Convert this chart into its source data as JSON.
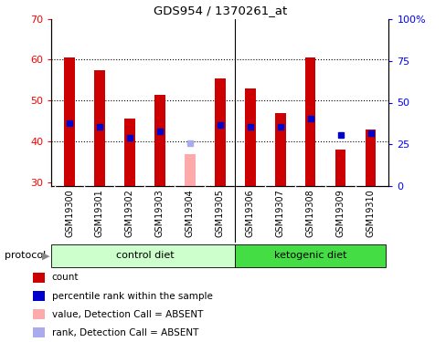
{
  "title": "GDS954 / 1370261_at",
  "samples": [
    "GSM19300",
    "GSM19301",
    "GSM19302",
    "GSM19303",
    "GSM19304",
    "GSM19305",
    "GSM19306",
    "GSM19307",
    "GSM19308",
    "GSM19309",
    "GSM19310"
  ],
  "red_values": [
    60.5,
    57.5,
    45.5,
    51.5,
    null,
    55.5,
    53.0,
    47.0,
    60.5,
    38.0,
    43.0
  ],
  "pink_values": [
    null,
    null,
    null,
    null,
    37.0,
    null,
    null,
    null,
    null,
    null,
    null
  ],
  "blue_markers": [
    44.5,
    43.5,
    41.0,
    42.5,
    null,
    44.0,
    43.5,
    43.5,
    45.5,
    41.5,
    42.0
  ],
  "lightblue_markers": [
    null,
    null,
    null,
    null,
    39.5,
    null,
    null,
    null,
    null,
    null,
    null
  ],
  "bar_bottom": 29.0,
  "ylim_left": [
    29,
    70
  ],
  "ylim_right": [
    0,
    100
  ],
  "yticks_left": [
    30,
    40,
    50,
    60,
    70
  ],
  "yticks_right": [
    0,
    25,
    50,
    75,
    100
  ],
  "ytick_labels_right": [
    "0",
    "25",
    "50",
    "75",
    "100%"
  ],
  "bar_color_red": "#cc0000",
  "bar_color_pink": "#ffaaaa",
  "marker_color_blue": "#0000cc",
  "marker_color_lightblue": "#aaaaee",
  "bar_width": 0.35,
  "bg_plot": "#ffffff",
  "bg_label": "#d3d3d3",
  "bg_control": "#ccffcc",
  "bg_ketogenic": "#44dd44",
  "dotted_color": "#000000",
  "legend_items": [
    "count",
    "percentile rank within the sample",
    "value, Detection Call = ABSENT",
    "rank, Detection Call = ABSENT"
  ],
  "legend_colors": [
    "#cc0000",
    "#0000cc",
    "#ffaaaa",
    "#aaaaee"
  ],
  "n_control": 6,
  "n_ketogenic": 5
}
